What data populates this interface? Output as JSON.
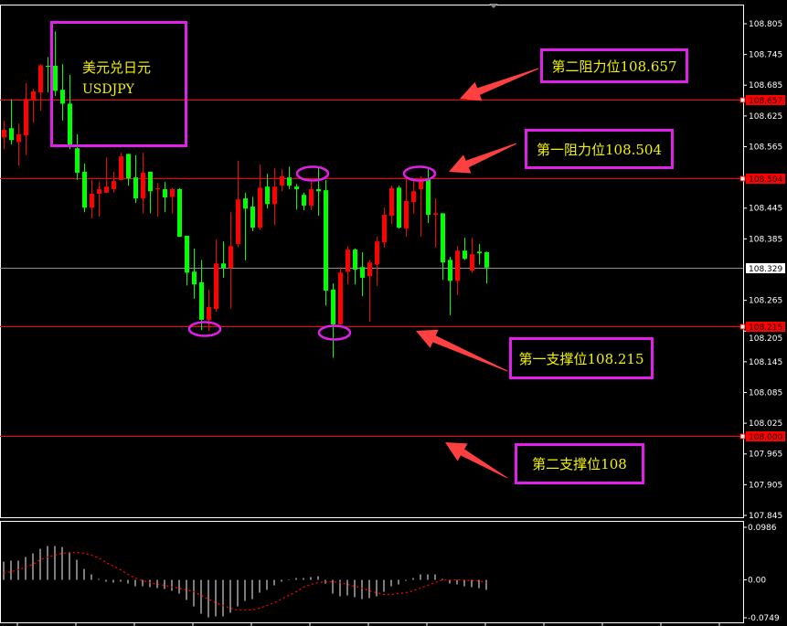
{
  "symbol": {
    "name_cn": "美元兑日元",
    "name": "USDJPY"
  },
  "annotations": [
    {
      "text": "第二阻力位108.657",
      "level": 108.657
    },
    {
      "text": "第一阻力位108.504",
      "level": 108.504
    },
    {
      "text": "第一支撑位108.215",
      "level": 108.215
    },
    {
      "text": "第二支撑位108",
      "level": 108.0
    }
  ],
  "colors": {
    "background": "#000000",
    "bull_candle": "#ff0000",
    "bear_candle": "#00ff00",
    "level_line": "#ff0000",
    "annotation_border": "#e020e8",
    "annotation_text": "#f2f200",
    "arrow": "#ff4040",
    "macd_histogram": "#c0c0c0",
    "macd_signal": "#ff0000"
  },
  "chart_data": [
    {
      "type": "candlestick",
      "price_axis": {
        "ticks": [
          "108.805",
          "108.745",
          "108.685",
          "108.625",
          "108.565",
          "108.445",
          "108.385",
          "108.265",
          "108.205",
          "108.145",
          "108.085",
          "108.025",
          "107.965",
          "107.905",
          "107.845"
        ],
        "range": [
          107.845,
          108.805
        ]
      },
      "current_price": "108.329",
      "level_tags": [
        "108.657",
        "108.504",
        "108.215",
        "108.000"
      ],
      "candles": [
        [
          108.583,
          108.616,
          108.56,
          108.598
        ],
        [
          108.601,
          108.658,
          108.569,
          108.578
        ],
        [
          108.574,
          108.61,
          108.528,
          108.589
        ],
        [
          108.587,
          108.689,
          108.549,
          108.658
        ],
        [
          108.657,
          108.678,
          108.612,
          108.673
        ],
        [
          108.671,
          108.726,
          108.635,
          108.724
        ],
        [
          108.723,
          108.74,
          108.671,
          108.721
        ],
        [
          108.723,
          108.79,
          108.664,
          108.674
        ],
        [
          108.676,
          108.726,
          108.616,
          108.649
        ],
        [
          108.649,
          108.705,
          108.56,
          108.567
        ],
        [
          108.562,
          108.589,
          108.5,
          108.514
        ],
        [
          108.516,
          108.532,
          108.437,
          108.446
        ],
        [
          108.446,
          108.5,
          108.425,
          108.473
        ],
        [
          108.473,
          108.496,
          108.428,
          108.482
        ],
        [
          108.475,
          108.544,
          108.475,
          108.487
        ],
        [
          108.482,
          108.516,
          108.475,
          108.498
        ],
        [
          108.5,
          108.553,
          108.5,
          108.546
        ],
        [
          108.551,
          108.551,
          108.489,
          108.503
        ],
        [
          108.505,
          108.548,
          108.455,
          108.464
        ],
        [
          108.464,
          108.553,
          108.435,
          108.514
        ],
        [
          108.516,
          108.516,
          108.435,
          108.478
        ],
        [
          108.482,
          108.494,
          108.428,
          108.484
        ],
        [
          108.482,
          108.496,
          108.437,
          108.466
        ],
        [
          108.467,
          108.484,
          108.435,
          108.482
        ],
        [
          108.482,
          108.484,
          108.389,
          108.389
        ],
        [
          108.391,
          108.391,
          108.294,
          108.319
        ],
        [
          108.321,
          108.366,
          108.268,
          108.296
        ],
        [
          108.3,
          108.344,
          108.207,
          108.227
        ],
        [
          108.227,
          108.286,
          108.205,
          108.252
        ],
        [
          108.248,
          108.384,
          108.243,
          108.337
        ],
        [
          108.337,
          108.38,
          108.309,
          108.328
        ],
        [
          108.328,
          108.437,
          108.248,
          108.371
        ],
        [
          108.375,
          108.537,
          108.369,
          108.462
        ],
        [
          108.464,
          108.475,
          108.343,
          108.444
        ],
        [
          108.448,
          108.467,
          108.4,
          108.407
        ],
        [
          108.407,
          108.53,
          108.403,
          108.485
        ],
        [
          108.487,
          108.512,
          108.444,
          108.453
        ],
        [
          108.453,
          108.523,
          108.412,
          108.487
        ],
        [
          108.489,
          108.521,
          108.478,
          108.507
        ],
        [
          108.505,
          108.526,
          108.482,
          108.489
        ],
        [
          108.487,
          108.492,
          108.442,
          108.482
        ],
        [
          108.471,
          108.475,
          108.441,
          108.45
        ],
        [
          108.45,
          108.496,
          108.441,
          108.482
        ],
        [
          108.482,
          108.526,
          108.43,
          108.478
        ],
        [
          108.48,
          108.5,
          108.255,
          108.284
        ],
        [
          108.286,
          108.298,
          108.153,
          108.218
        ],
        [
          108.218,
          108.33,
          108.218,
          108.319
        ],
        [
          108.321,
          108.371,
          108.296,
          108.364
        ],
        [
          108.364,
          108.366,
          108.296,
          108.325
        ],
        [
          108.33,
          108.359,
          108.273,
          108.309
        ],
        [
          108.312,
          108.343,
          108.223,
          108.339
        ],
        [
          108.335,
          108.389,
          108.293,
          108.38
        ],
        [
          108.378,
          108.446,
          108.368,
          108.432
        ],
        [
          108.43,
          108.489,
          108.414,
          108.484
        ],
        [
          108.485,
          108.489,
          108.405,
          108.407
        ],
        [
          108.405,
          108.503,
          108.389,
          108.459
        ],
        [
          108.457,
          108.501,
          108.434,
          108.478
        ],
        [
          108.482,
          108.507,
          108.389,
          108.501
        ],
        [
          108.503,
          108.523,
          108.416,
          108.432
        ],
        [
          108.432,
          108.464,
          108.368,
          108.435
        ],
        [
          108.435,
          108.435,
          108.305,
          108.339
        ],
        [
          108.344,
          108.35,
          108.236,
          108.303
        ],
        [
          108.303,
          108.371,
          108.275,
          108.362
        ],
        [
          108.362,
          108.387,
          108.344,
          108.346
        ],
        [
          108.323,
          108.387,
          108.318,
          108.355
        ],
        [
          108.36,
          108.375,
          108.335,
          108.357
        ],
        [
          108.359,
          108.36,
          108.298,
          108.329
        ]
      ],
      "candle_fields": [
        "open",
        "high",
        "low",
        "close"
      ]
    },
    {
      "type": "bar",
      "indicator": "MACD",
      "axis_ticks": [
        "0.0986",
        "0.00",
        "-0.0749"
      ],
      "range": [
        -0.0749,
        0.0986
      ],
      "histogram": [
        0.035,
        0.0368,
        0.0368,
        0.0438,
        0.0508,
        0.0595,
        0.0648,
        0.0648,
        0.063,
        0.0525,
        0.0385,
        0.021,
        0.0105,
        0.0018,
        -0.0035,
        -0.0053,
        -0.0035,
        -0.007,
        -0.0123,
        -0.0123,
        -0.014,
        -0.0158,
        -0.0175,
        -0.021,
        -0.0263,
        -0.0385,
        -0.0508,
        -0.0648,
        -0.0718,
        -0.07,
        -0.07,
        -0.063,
        -0.0508,
        -0.0403,
        -0.0368,
        -0.0245,
        -0.0193,
        -0.0105,
        -0.0035,
        0,
        0.0035,
        0.0035,
        0.0053,
        0.007,
        -0.007,
        -0.0263,
        -0.0315,
        -0.0298,
        -0.0333,
        -0.0368,
        -0.035,
        -0.0315,
        -0.0228,
        -0.0123,
        -0.0088,
        -0.0018,
        0.0035,
        0.0105,
        0.0105,
        0.0105,
        0.0018,
        -0.007,
        -0.0088,
        -0.0123,
        -0.014,
        -0.0158,
        -0.0193
      ],
      "signal": [
        0.0123,
        0.0158,
        0.0193,
        0.0245,
        0.0298,
        0.0385,
        0.0438,
        0.0473,
        0.0508,
        0.0525,
        0.0525,
        0.0508,
        0.0473,
        0.042,
        0.0333,
        0.0263,
        0.0193,
        0.0105,
        0.0035,
        -0.0018,
        -0.0053,
        -0.0088,
        -0.0105,
        -0.014,
        -0.0158,
        -0.0193,
        -0.0228,
        -0.0298,
        -0.0368,
        -0.0438,
        -0.049,
        -0.0543,
        -0.0578,
        -0.0578,
        -0.0578,
        -0.0543,
        -0.049,
        -0.0438,
        -0.0368,
        -0.0298,
        -0.0228,
        -0.014,
        -0.0088,
        -0.0053,
        -0.0035,
        -0.0035,
        -0.0053,
        -0.0088,
        -0.0123,
        -0.0158,
        -0.021,
        -0.0245,
        -0.028,
        -0.028,
        -0.0263,
        -0.0245,
        -0.021,
        -0.0158,
        -0.0105,
        -0.0053,
        0,
        0,
        0,
        0,
        -0.0018,
        -0.0018,
        -0.0053
      ]
    }
  ]
}
